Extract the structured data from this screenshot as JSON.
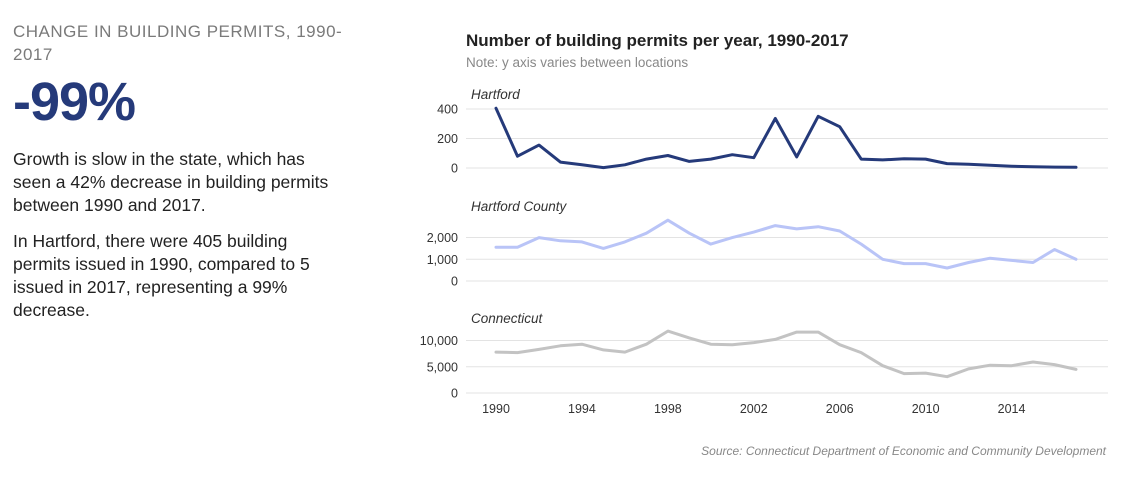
{
  "left": {
    "kicker": "CHANGE IN BUILDING PERMITS, 1990-2017",
    "big_number": "-99%",
    "paragraph1": "Growth is slow in the state, which has seen a 42% decrease in building permits between 1990 and 2017.",
    "paragraph2": "In Hartford, there were 405 building permits issued in 1990, compared to 5 issued in 2017, representing a 99% decrease."
  },
  "chart_data": {
    "type": "line",
    "title": "Number of building permits per year, 1990-2017",
    "subtitle": "Note: y axis varies between locations",
    "source": "Source: Connecticut Department of Economic and Community Development",
    "x": [
      1990,
      1991,
      1992,
      1993,
      1994,
      1995,
      1996,
      1997,
      1998,
      1999,
      2000,
      2001,
      2002,
      2003,
      2004,
      2005,
      2006,
      2007,
      2008,
      2009,
      2010,
      2011,
      2012,
      2013,
      2014,
      2015,
      2016,
      2017
    ],
    "x_ticks": [
      1990,
      1994,
      1998,
      2002,
      2006,
      2010,
      2014
    ],
    "xlim": [
      1990,
      2017
    ],
    "grid": true,
    "panels": [
      {
        "name": "Hartford",
        "color": "#253a7a",
        "ylim": [
          0,
          420
        ],
        "y_ticks": [
          0,
          200,
          400
        ],
        "y_tick_labels": [
          "0",
          "200",
          "400"
        ],
        "values": [
          405,
          80,
          155,
          40,
          22,
          3,
          22,
          60,
          85,
          45,
          60,
          90,
          70,
          335,
          75,
          350,
          280,
          60,
          55,
          62,
          60,
          30,
          25,
          18,
          12,
          8,
          6,
          5
        ]
      },
      {
        "name": "Hartford County",
        "color": "#b9c4f7",
        "ylim": [
          0,
          2900
        ],
        "y_ticks": [
          0,
          1000,
          2000
        ],
        "y_tick_labels": [
          "0",
          "1,000",
          "2,000"
        ],
        "values": [
          1550,
          1550,
          2000,
          1850,
          1800,
          1500,
          1800,
          2200,
          2800,
          2200,
          1700,
          2000,
          2250,
          2550,
          2400,
          2500,
          2300,
          1700,
          1000,
          800,
          800,
          600,
          850,
          1050,
          950,
          850,
          1450,
          1000
        ]
      },
      {
        "name": "Connecticut",
        "color": "#c3c3c3",
        "ylim": [
          0,
          12000
        ],
        "y_ticks": [
          0,
          5000,
          10000
        ],
        "y_tick_labels": [
          "0",
          "5,000",
          "10,000"
        ],
        "values": [
          7800,
          7700,
          8300,
          9000,
          9300,
          8200,
          7800,
          9300,
          11800,
          10500,
          9300,
          9200,
          9600,
          10200,
          11600,
          11600,
          9200,
          7700,
          5200,
          3700,
          3800,
          3100,
          4600,
          5300,
          5200,
          5900,
          5400,
          4500
        ]
      }
    ]
  }
}
